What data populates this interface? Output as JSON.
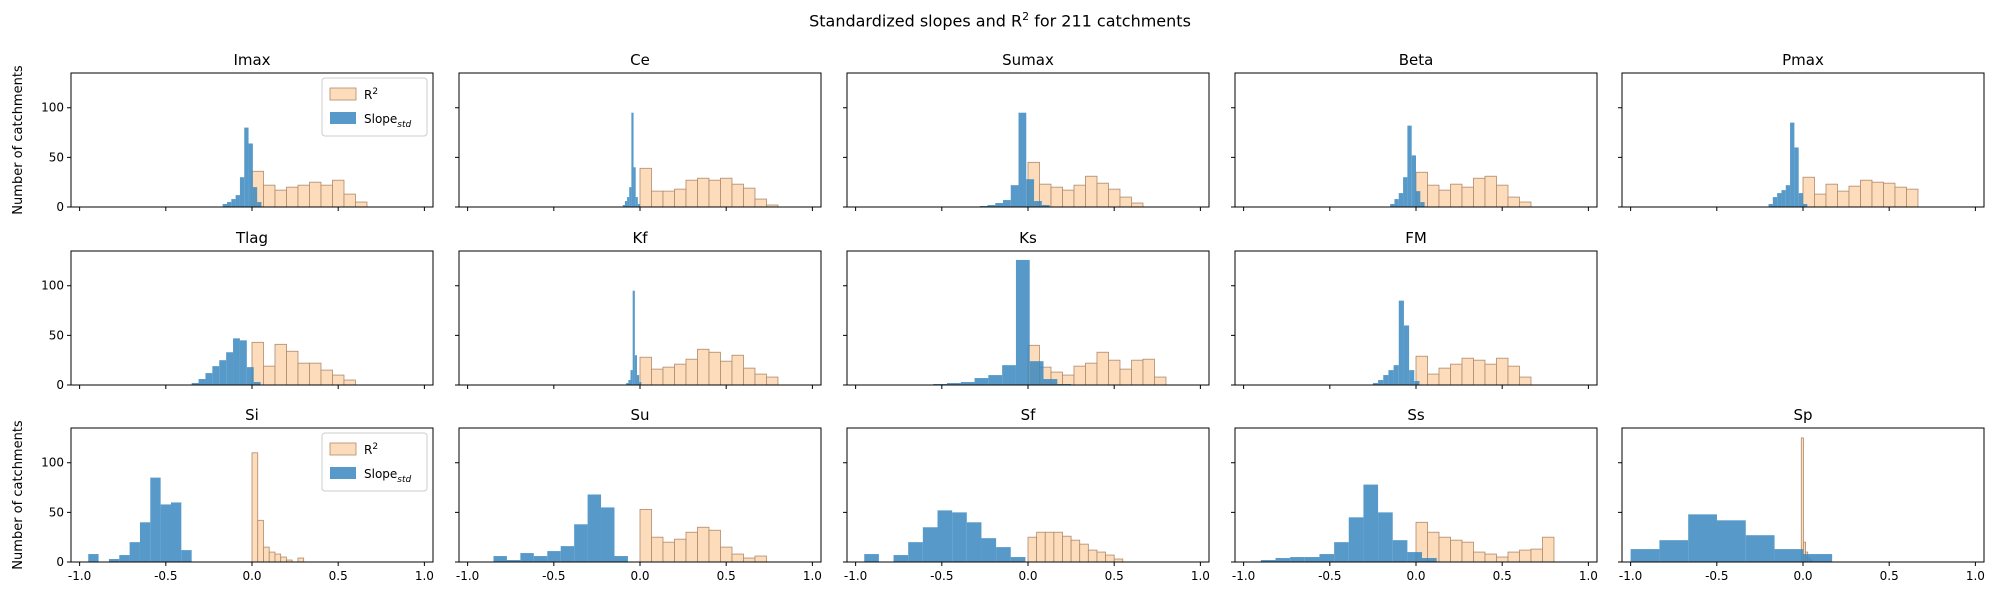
{
  "figure": {
    "title_main": "Standardized slopes and R",
    "title_sup": "2",
    "title_rest": " for 211 catchments",
    "ylabel": "Number of catchments",
    "colors": {
      "r2_fill": "#fddcbc",
      "r2_edge": "#b08a6a",
      "slope_fill": "#3a88c0",
      "axis": "#000000"
    }
  },
  "chart_data": [
    {
      "type": "bar",
      "title": "Imax",
      "xlim": [
        -1.05,
        1.05
      ],
      "ylim": [
        0,
        135
      ],
      "yticks": [
        0,
        50,
        100
      ],
      "xticks": [
        -1.0,
        -0.5,
        0.0,
        0.5,
        1.0
      ],
      "r2_bins": {
        "start": 0.0,
        "width": 0.0667,
        "counts": [
          36,
          22,
          17,
          20,
          22,
          25,
          22,
          27,
          13,
          5
        ]
      },
      "slope_bins": {
        "start": -0.17,
        "width": 0.025,
        "counts": [
          3,
          5,
          8,
          12,
          30,
          80,
          64,
          20,
          5
        ]
      }
    },
    {
      "type": "bar",
      "title": "Ce",
      "xlim": [
        -1.05,
        1.05
      ],
      "ylim": [
        0,
        135
      ],
      "yticks": [
        0,
        50,
        100
      ],
      "xticks": [
        -1.0,
        -0.5,
        0.0,
        0.5,
        1.0
      ],
      "r2_bins": {
        "start": 0.0,
        "width": 0.0667,
        "counts": [
          39,
          16,
          16,
          18,
          27,
          29,
          27,
          29,
          23,
          19,
          8,
          2
        ]
      },
      "slope_bins": {
        "start": -0.1,
        "width": 0.0125,
        "counts": [
          2,
          6,
          10,
          20,
          95,
          40,
          10,
          3
        ]
      }
    },
    {
      "type": "bar",
      "title": "Sumax",
      "xlim": [
        -1.05,
        1.05
      ],
      "ylim": [
        0,
        135
      ],
      "yticks": [
        0,
        50,
        100
      ],
      "xticks": [
        -1.0,
        -0.5,
        0.0,
        0.5,
        1.0
      ],
      "r2_bins": {
        "start": 0.0,
        "width": 0.0667,
        "counts": [
          45,
          23,
          20,
          17,
          22,
          31,
          24,
          18,
          10,
          4
        ]
      },
      "slope_bins": {
        "start": -0.28,
        "width": 0.045,
        "counts": [
          1,
          2,
          4,
          7,
          22,
          95,
          28,
          6,
          2
        ]
      }
    },
    {
      "type": "bar",
      "title": "Beta",
      "xlim": [
        -1.05,
        1.05
      ],
      "ylim": [
        0,
        135
      ],
      "yticks": [
        0,
        50,
        100
      ],
      "xticks": [
        -1.0,
        -0.5,
        0.0,
        0.5,
        1.0
      ],
      "r2_bins": {
        "start": 0.0,
        "width": 0.0667,
        "counts": [
          35,
          22,
          17,
          23,
          20,
          29,
          31,
          22,
          10,
          5
        ]
      },
      "slope_bins": {
        "start": -0.15,
        "width": 0.025,
        "counts": [
          3,
          8,
          14,
          30,
          82,
          52,
          16,
          5
        ]
      }
    },
    {
      "type": "bar",
      "title": "Pmax",
      "xlim": [
        -1.05,
        1.05
      ],
      "ylim": [
        0,
        135
      ],
      "yticks": [
        0,
        50,
        100
      ],
      "xticks": [
        -1.0,
        -0.5,
        0.0,
        0.5,
        1.0
      ],
      "r2_bins": {
        "start": 0.0,
        "width": 0.0667,
        "counts": [
          30,
          13,
          23,
          16,
          21,
          27,
          25,
          24,
          20,
          18
        ]
      },
      "slope_bins": {
        "start": -0.2,
        "width": 0.025,
        "counts": [
          3,
          10,
          14,
          17,
          22,
          85,
          60,
          14,
          3
        ]
      }
    },
    {
      "type": "bar",
      "title": "Tlag",
      "xlim": [
        -1.05,
        1.05
      ],
      "ylim": [
        0,
        135
      ],
      "yticks": [
        0,
        50,
        100
      ],
      "xticks": [
        -1.0,
        -0.5,
        0.0,
        0.5,
        1.0
      ],
      "r2_bins": {
        "start": 0.0,
        "width": 0.0667,
        "counts": [
          43,
          19,
          41,
          34,
          22,
          22,
          15,
          10,
          5
        ]
      },
      "slope_bins": {
        "start": -0.35,
        "width": 0.04,
        "counts": [
          2,
          6,
          12,
          19,
          25,
          33,
          47,
          45,
          18,
          3
        ]
      }
    },
    {
      "type": "bar",
      "title": "Kf",
      "xlim": [
        -1.05,
        1.05
      ],
      "ylim": [
        0,
        135
      ],
      "yticks": [
        0,
        50,
        100
      ],
      "xticks": [
        -1.0,
        -0.5,
        0.0,
        0.5,
        1.0
      ],
      "r2_bins": {
        "start": 0.0,
        "width": 0.0667,
        "counts": [
          28,
          16,
          18,
          21,
          26,
          36,
          33,
          24,
          30,
          17,
          11,
          8
        ]
      },
      "slope_bins": {
        "start": -0.08,
        "width": 0.0125,
        "counts": [
          2,
          5,
          15,
          95,
          30,
          10,
          3
        ]
      }
    },
    {
      "type": "bar",
      "title": "Ks",
      "xlim": [
        -1.05,
        1.05
      ],
      "ylim": [
        0,
        135
      ],
      "yticks": [
        0,
        50,
        100
      ],
      "xticks": [
        -1.0,
        -0.5,
        0.0,
        0.5,
        1.0
      ],
      "r2_bins": {
        "start": 0.0,
        "width": 0.0667,
        "counts": [
          40,
          18,
          13,
          10,
          19,
          22,
          33,
          25,
          16,
          25,
          26,
          8
        ]
      },
      "slope_bins": {
        "start": -0.55,
        "width": 0.08,
        "counts": [
          1,
          2,
          3,
          7,
          10,
          20,
          126,
          24,
          6,
          1
        ]
      }
    },
    {
      "type": "bar",
      "title": "FM",
      "xlim": [
        -1.05,
        1.05
      ],
      "ylim": [
        0,
        135
      ],
      "yticks": [
        0,
        50,
        100
      ],
      "xticks": [
        -1.0,
        -0.5,
        0.0,
        0.5,
        1.0
      ],
      "r2_bins": {
        "start": 0.0,
        "width": 0.0667,
        "counts": [
          29,
          11,
          17,
          21,
          27,
          25,
          21,
          27,
          19,
          8
        ]
      },
      "slope_bins": {
        "start": -0.25,
        "width": 0.03,
        "counts": [
          2,
          5,
          10,
          15,
          20,
          85,
          60,
          15,
          4
        ]
      }
    },
    null,
    {
      "type": "bar",
      "title": "Si",
      "xlim": [
        -1.05,
        1.05
      ],
      "ylim": [
        0,
        135
      ],
      "yticks": [
        0,
        50,
        100
      ],
      "xticks": [
        -1.0,
        -0.5,
        0.0,
        0.5,
        1.0
      ],
      "r2_bins": {
        "start": 0.0,
        "width": 0.0333,
        "counts": [
          110,
          42,
          15,
          10,
          8,
          5,
          2,
          0,
          4
        ]
      },
      "slope_bins": {
        "start": -0.95,
        "width": 0.06,
        "counts": [
          8,
          0,
          3,
          7,
          20,
          40,
          85,
          58,
          60,
          12
        ]
      }
    },
    {
      "type": "bar",
      "title": "Su",
      "xlim": [
        -1.05,
        1.05
      ],
      "ylim": [
        0,
        135
      ],
      "yticks": [
        0,
        50,
        100
      ],
      "xticks": [
        -1.0,
        -0.5,
        0.0,
        0.5,
        1.0
      ],
      "r2_bins": {
        "start": 0.0,
        "width": 0.0667,
        "counts": [
          53,
          25,
          20,
          23,
          30,
          35,
          32,
          15,
          8,
          4,
          6
        ]
      },
      "slope_bins": {
        "start": -0.85,
        "width": 0.078,
        "counts": [
          6,
          2,
          9,
          6,
          11,
          16,
          38,
          68,
          55,
          6
        ]
      }
    },
    {
      "type": "bar",
      "title": "Sf",
      "xlim": [
        -1.05,
        1.05
      ],
      "ylim": [
        0,
        135
      ],
      "yticks": [
        0,
        50,
        100
      ],
      "xticks": [
        -1.0,
        -0.5,
        0.0,
        0.5,
        1.0
      ],
      "r2_bins": {
        "start": 0.0,
        "width": 0.05,
        "counts": [
          25,
          30,
          30,
          30,
          26,
          22,
          18,
          12,
          10,
          7,
          3
        ]
      },
      "slope_bins": {
        "start": -0.95,
        "width": 0.085,
        "counts": [
          8,
          0,
          7,
          20,
          35,
          52,
          50,
          40,
          24,
          15,
          5
        ]
      }
    },
    {
      "type": "bar",
      "title": "Ss",
      "xlim": [
        -1.05,
        1.05
      ],
      "ylim": [
        0,
        135
      ],
      "yticks": [
        0,
        50,
        100
      ],
      "xticks": [
        -1.0,
        -0.5,
        0.0,
        0.5,
        1.0
      ],
      "r2_bins": {
        "start": 0.0,
        "width": 0.0667,
        "counts": [
          40,
          30,
          25,
          22,
          20,
          10,
          8,
          5,
          10,
          12,
          13,
          25
        ]
      },
      "slope_bins": {
        "start": -0.9,
        "width": 0.085,
        "counts": [
          2,
          4,
          5,
          5,
          8,
          20,
          45,
          78,
          50,
          22,
          10,
          4
        ]
      }
    },
    {
      "type": "bar",
      "title": "Sp",
      "xlim": [
        -1.05,
        1.05
      ],
      "ylim": [
        0,
        135
      ],
      "yticks": [
        0,
        50,
        100
      ],
      "xticks": [
        -1.0,
        -0.5,
        0.0,
        0.5,
        1.0
      ],
      "r2_bins": {
        "start": -0.01,
        "width": 0.0125,
        "counts": [
          125,
          20,
          10,
          4,
          2
        ]
      },
      "slope_bins": {
        "start": -1.0,
        "width": 0.167,
        "counts": [
          13,
          22,
          48,
          42,
          27,
          13,
          8
        ]
      }
    }
  ],
  "legends": [
    {
      "panel": 0,
      "items": [
        {
          "label_main": "R",
          "label_sup": "2",
          "kind": "r2"
        },
        {
          "label_main": "Slope",
          "label_sub": "std",
          "kind": "slope"
        }
      ]
    },
    {
      "panel": 10,
      "items": [
        {
          "label_main": "R",
          "label_sup": "2",
          "kind": "r2"
        },
        {
          "label_main": "Slope",
          "label_sub": "std",
          "kind": "slope"
        }
      ]
    }
  ]
}
